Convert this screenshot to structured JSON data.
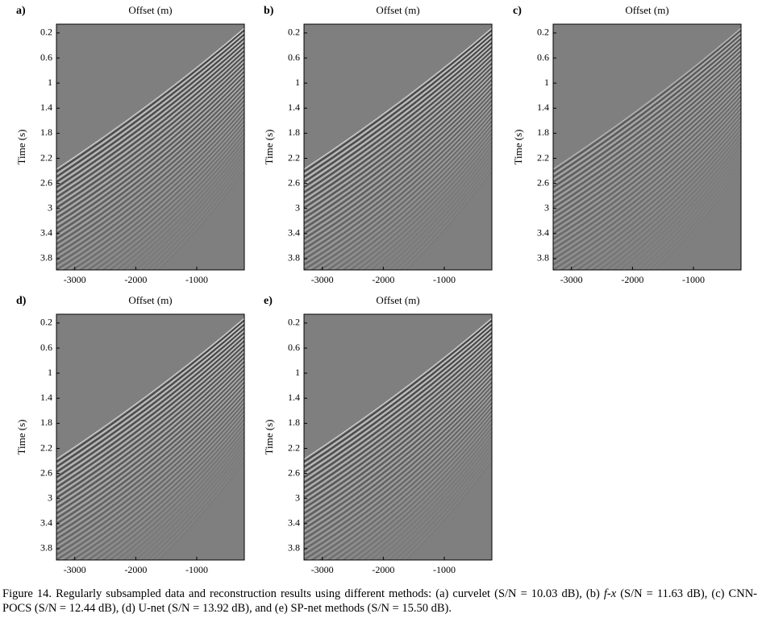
{
  "axes": {
    "xlabel": "Offset (m)",
    "ylabel": "Time (s)",
    "xlim": [
      -3300,
      -220
    ],
    "xticks": [
      -3000,
      -2000,
      -1000
    ],
    "ylim": [
      0.06,
      3.98
    ],
    "yticks": [
      0.2,
      0.6,
      1,
      1.4,
      1.8,
      2.2,
      2.6,
      3,
      3.4,
      3.8
    ]
  },
  "panels": [
    {
      "label": "a)"
    },
    {
      "label": "b)"
    },
    {
      "label": "c)"
    },
    {
      "label": "d)"
    },
    {
      "label": "e)"
    }
  ],
  "caption": [
    "Figure 14. Regularly subsampled data and reconstruction results using different methods: (a) curvelet (S/N = 10.03 dB), (b) ",
    "f-x",
    " (S/N = 11.63 dB), (c) CNN-POCS (S/N = 12.44 dB), (d) U-net (S/N = 13.92 dB), and (e) SP-net methods (S/N = 15.50 dB)."
  ]
}
